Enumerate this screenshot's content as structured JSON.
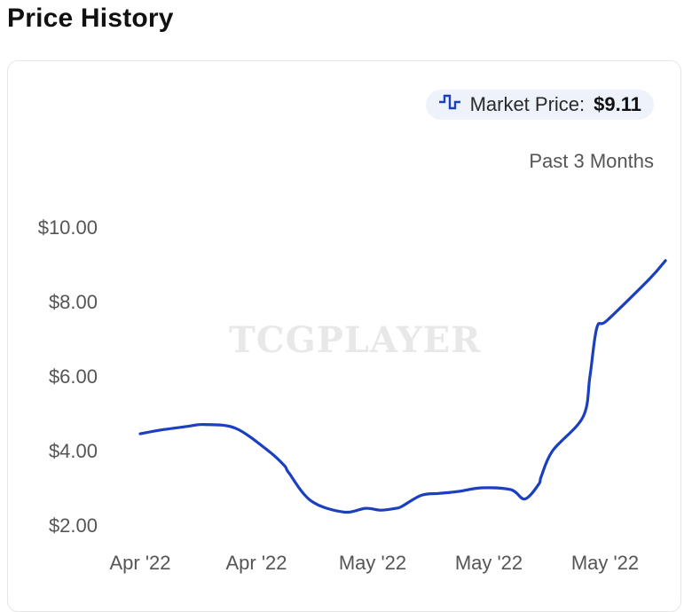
{
  "header": {
    "title": "Price History"
  },
  "legend": {
    "label": "Market Price:",
    "value": "$9.11",
    "icon": "step-line-icon",
    "color": "#1a3fbf"
  },
  "range_label": "Past 3 Months",
  "watermark": "TCGPLAYER",
  "chart_data": {
    "type": "line",
    "title": "",
    "xlabel": "",
    "ylabel": "",
    "ylim": [
      1.5,
      11.0
    ],
    "y_ticks": [
      "$10.00",
      "$8.00",
      "$6.00",
      "$4.00",
      "$2.00"
    ],
    "y_tick_values": [
      10,
      8,
      6,
      4,
      2
    ],
    "x_tick_labels": [
      "Apr '22",
      "Apr '22",
      "May '22",
      "May '22",
      "May '22"
    ],
    "x_tick_values": [
      0,
      1,
      2,
      3,
      4
    ],
    "grid": false,
    "series": [
      {
        "name": "Market Price",
        "color": "#1a3fbf",
        "x": [
          0,
          0.17,
          0.41,
          0.55,
          0.82,
          1.1,
          1.24,
          1.28,
          1.47,
          1.75,
          1.94,
          2.07,
          2.2,
          2.25,
          2.42,
          2.57,
          2.73,
          2.94,
          3.19,
          3.31,
          3.43,
          3.45,
          3.55,
          3.81,
          3.87,
          3.93,
          4.02,
          4.38,
          4.52
        ],
        "y": [
          4.45,
          4.55,
          4.65,
          4.7,
          4.6,
          4.0,
          3.6,
          3.4,
          2.65,
          2.35,
          2.45,
          2.4,
          2.45,
          2.5,
          2.8,
          2.85,
          2.9,
          3.0,
          2.95,
          2.7,
          3.1,
          3.3,
          4.0,
          4.9,
          6.0,
          7.3,
          7.5,
          8.6,
          9.1
        ]
      }
    ]
  }
}
